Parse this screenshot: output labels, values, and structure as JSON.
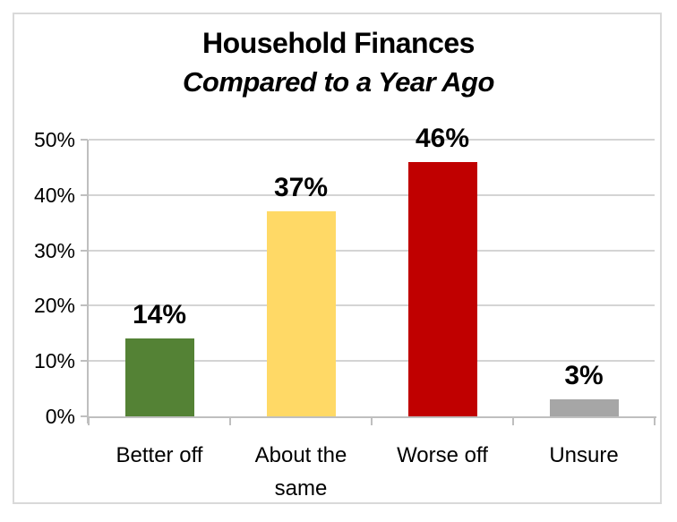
{
  "chart_data": {
    "type": "bar",
    "title": "Household Finances",
    "subtitle": "Compared to a Year Ago",
    "categories": [
      "Better off",
      "About the same",
      "Worse off",
      "Unsure"
    ],
    "values": [
      14,
      37,
      46,
      3
    ],
    "data_labels": [
      "14%",
      "37%",
      "46%",
      "3%"
    ],
    "bar_colors": [
      "#548235",
      "#FFD966",
      "#C00000",
      "#A6A6A6"
    ],
    "xlabel": "",
    "ylabel": "",
    "ylim": [
      0,
      50
    ],
    "yticks": [
      0,
      10,
      20,
      30,
      40,
      50
    ],
    "ytick_labels": [
      "0%",
      "10%",
      "20%",
      "30%",
      "40%",
      "50%"
    ],
    "grid": true,
    "legend": false
  },
  "colors": {
    "background": "#FFFFFF",
    "chart_border": "#D9D9D9",
    "gridline": "#D4D4D4",
    "axis": "#BFBFBF",
    "text": "#000000"
  }
}
